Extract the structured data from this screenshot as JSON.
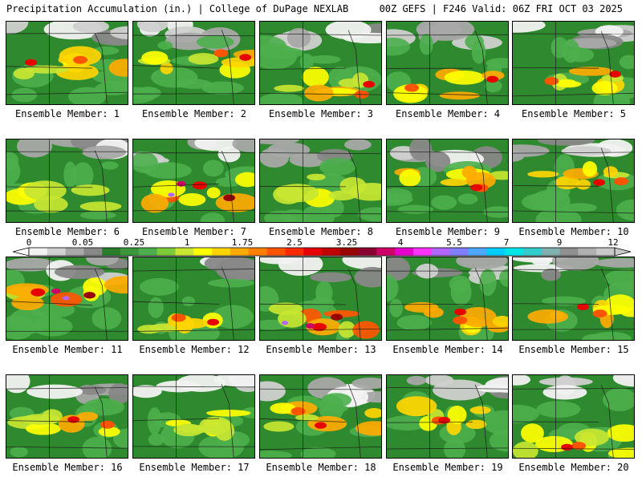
{
  "header": {
    "left_title": "Precipitation Accumulation (in.) | College of DuPage NEXLAB",
    "right_title": "00Z GEFS | F246 Valid: 06Z FRI OCT 03 2025"
  },
  "members": [
    {
      "label": "Ensemble Member: 1",
      "pattern": "moderate",
      "seed": 1
    },
    {
      "label": "Ensemble Member: 2",
      "pattern": "moderate",
      "seed": 2
    },
    {
      "label": "Ensemble Member: 3",
      "pattern": "moderate",
      "seed": 3
    },
    {
      "label": "Ensemble Member: 4",
      "pattern": "moderate",
      "seed": 4
    },
    {
      "label": "Ensemble Member: 5",
      "pattern": "moderate",
      "seed": 5
    },
    {
      "label": "Ensemble Member: 6",
      "pattern": "light",
      "seed": 6
    },
    {
      "label": "Ensemble Member: 7",
      "pattern": "heavy",
      "seed": 7
    },
    {
      "label": "Ensemble Member: 8",
      "pattern": "light",
      "seed": 8
    },
    {
      "label": "Ensemble Member: 9",
      "pattern": "moderate",
      "seed": 9
    },
    {
      "label": "Ensemble Member: 10",
      "pattern": "moderate",
      "seed": 10
    },
    {
      "label": "Ensemble Member: 11",
      "pattern": "heavy",
      "seed": 11
    },
    {
      "label": "Ensemble Member: 12",
      "pattern": "moderate",
      "seed": 12
    },
    {
      "label": "Ensemble Member: 13",
      "pattern": "heavy",
      "seed": 13
    },
    {
      "label": "Ensemble Member: 14",
      "pattern": "moderate",
      "seed": 14
    },
    {
      "label": "Ensemble Member: 15",
      "pattern": "moderate",
      "seed": 15
    },
    {
      "label": "Ensemble Member: 16",
      "pattern": "moderate",
      "seed": 16
    },
    {
      "label": "Ensemble Member: 17",
      "pattern": "light",
      "seed": 17
    },
    {
      "label": "Ensemble Member: 18",
      "pattern": "moderate",
      "seed": 18
    },
    {
      "label": "Ensemble Member: 19",
      "pattern": "moderate",
      "seed": 19
    },
    {
      "label": "Ensemble Member: 20",
      "pattern": "moderate",
      "seed": 20
    }
  ],
  "colorbar": {
    "tick_labels": [
      "0",
      "0.05",
      "0.25",
      "1",
      "1.75",
      "2.5",
      "3.25",
      "4",
      "5.5",
      "7",
      "9",
      "12"
    ],
    "colors": [
      "#f2f2f2",
      "#d0d0d0",
      "#a8a8a8",
      "#888888",
      "#2a7d2a",
      "#3c963c",
      "#4caf4c",
      "#7ecb3a",
      "#c8e632",
      "#ffff00",
      "#ffd500",
      "#ffaa00",
      "#ff8000",
      "#ff5500",
      "#ff2a00",
      "#e60000",
      "#c00000",
      "#990000",
      "#8b0030",
      "#cc0066",
      "#e600cc",
      "#ff33ff",
      "#b266ff",
      "#7f7fff",
      "#4da6ff",
      "#00ccff",
      "#00e6e6",
      "#33cccc",
      "#80b0b0",
      "#909090",
      "#b0b0b0",
      "#c8c8c8"
    ]
  }
}
